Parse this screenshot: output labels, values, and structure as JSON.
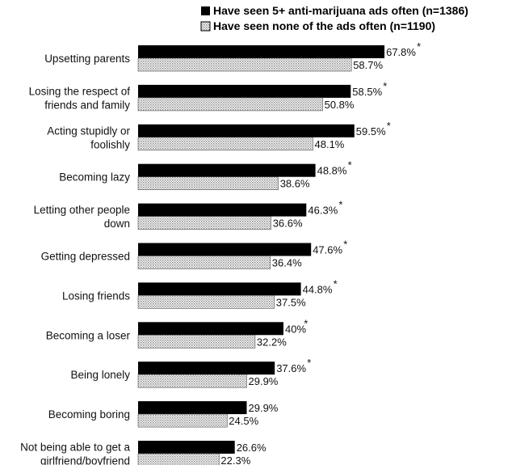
{
  "chart_data": {
    "type": "bar",
    "orientation": "horizontal",
    "legend_position": "top-right",
    "grid": false,
    "xlim": [
      0,
      100
    ],
    "categories": [
      [
        "Upsetting parents"
      ],
      [
        "Losing the respect of",
        "friends and family"
      ],
      [
        "Acting stupidly or",
        "foolishly"
      ],
      [
        "Becoming lazy"
      ],
      [
        "Letting other people",
        "down"
      ],
      [
        "Getting depressed"
      ],
      [
        "Losing friends"
      ],
      [
        "Becoming a loser"
      ],
      [
        "Being lonely"
      ],
      [
        "Becoming boring"
      ],
      [
        "Not being able to get a",
        "girlfriend/boyfriend"
      ]
    ],
    "series": [
      {
        "name": "Have seen 5+ anti-marijuana ads often (n=1386)",
        "color": "#000000",
        "values": [
          67.8,
          58.5,
          59.5,
          48.8,
          46.3,
          47.6,
          44.8,
          40,
          37.6,
          29.9,
          26.6
        ],
        "labels": [
          "67.8%",
          "58.5%",
          "59.5%",
          "48.8%",
          "46.3%",
          "47.6%",
          "44.8%",
          "40%",
          "37.6%",
          "29.9%",
          "26.6%"
        ],
        "significant": [
          true,
          true,
          true,
          true,
          true,
          true,
          true,
          true,
          true,
          false,
          false
        ]
      },
      {
        "name": "Have seen none of the ads often (n=1190)",
        "color": "#d8d8d8",
        "values": [
          58.7,
          50.8,
          48.1,
          38.6,
          36.6,
          36.4,
          37.5,
          32.2,
          29.9,
          24.5,
          22.3
        ],
        "labels": [
          "58.7%",
          "50.8%",
          "48.1%",
          "38.6%",
          "36.6%",
          "36.4%",
          "37.5%",
          "32.2%",
          "29.9%",
          "24.5%",
          "22.3%"
        ]
      }
    ],
    "significance_marker": "*"
  }
}
